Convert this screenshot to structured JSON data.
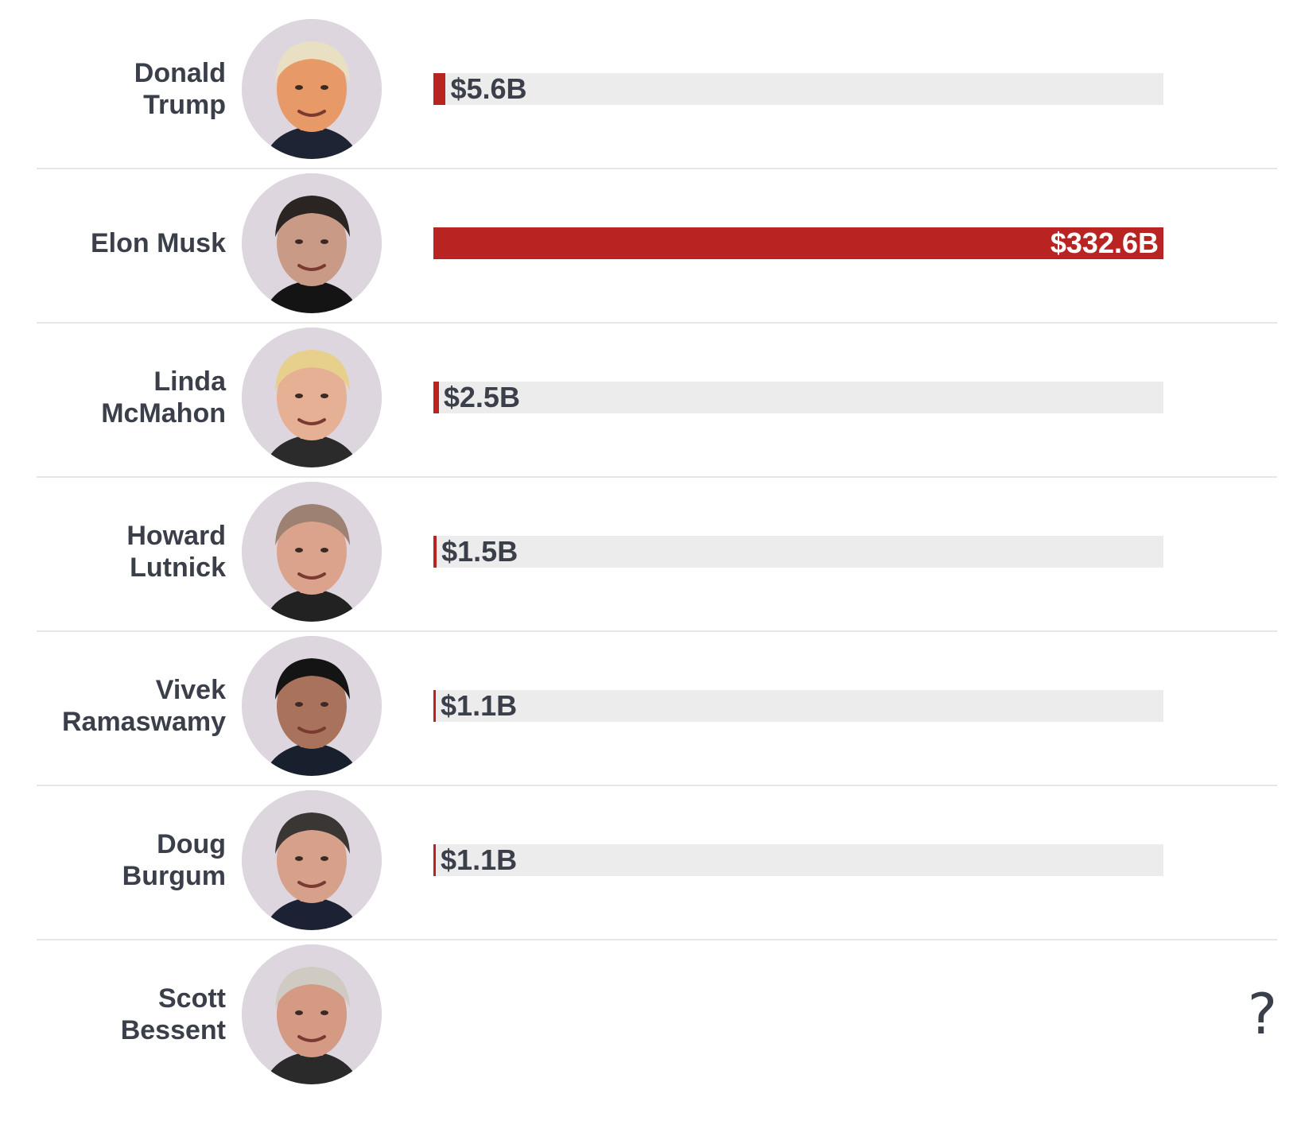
{
  "chart_data": {
    "type": "bar",
    "orientation": "horizontal",
    "categories": [
      "Donald\nTrump",
      "Elon Musk",
      "Linda\nMcMahon",
      "Howard\nLutnick",
      "Vivek\nRamaswamy",
      "Doug\nBurgum",
      "Scott\nBessent"
    ],
    "values": [
      5.6,
      332.6,
      2.5,
      1.5,
      1.1,
      1.1,
      null
    ],
    "value_labels": [
      "$5.6B",
      "$332.6B",
      "$2.5B",
      "$1.5B",
      "$1.1B",
      "$1.1B",
      "?"
    ],
    "xlim": [
      0,
      332.6
    ],
    "grid": false,
    "legend": "none"
  },
  "people": [
    {
      "name": "Donald\nTrump",
      "avatar_icon": "donald-trump-portrait-icon",
      "hair": "#e9dfc2",
      "skin": "#e79a67",
      "suit": "#1e2433"
    },
    {
      "name": "Elon Musk",
      "avatar_icon": "elon-musk-portrait-icon",
      "hair": "#2a2422",
      "skin": "#c99a86",
      "suit": "#141414"
    },
    {
      "name": "Linda\nMcMahon",
      "avatar_icon": "linda-mcmahon-portrait-icon",
      "hair": "#e6d08c",
      "skin": "#e5b094",
      "suit": "#2b2b2b"
    },
    {
      "name": "Howard\nLutnick",
      "avatar_icon": "howard-lutnick-portrait-icon",
      "hair": "#9d8274",
      "skin": "#dca38c",
      "suit": "#222222"
    },
    {
      "name": "Vivek\nRamaswamy",
      "avatar_icon": "vivek-ramaswamy-portrait-icon",
      "hair": "#141414",
      "skin": "#a8725c",
      "suit": "#18202e"
    },
    {
      "name": "Doug\nBurgum",
      "avatar_icon": "doug-burgum-portrait-icon",
      "hair": "#3a3634",
      "skin": "#d6a08a",
      "suit": "#1c2233"
    },
    {
      "name": "Scott\nBessent",
      "avatar_icon": "scott-bessent-portrait-icon",
      "hair": "#cfcbc2",
      "skin": "#d59a84",
      "suit": "#2a2a2a"
    }
  ],
  "colors": {
    "bar": "#b92423",
    "track": "#ececec",
    "text": "#3a3f4a",
    "avatar_bg": "#ddd6de"
  }
}
